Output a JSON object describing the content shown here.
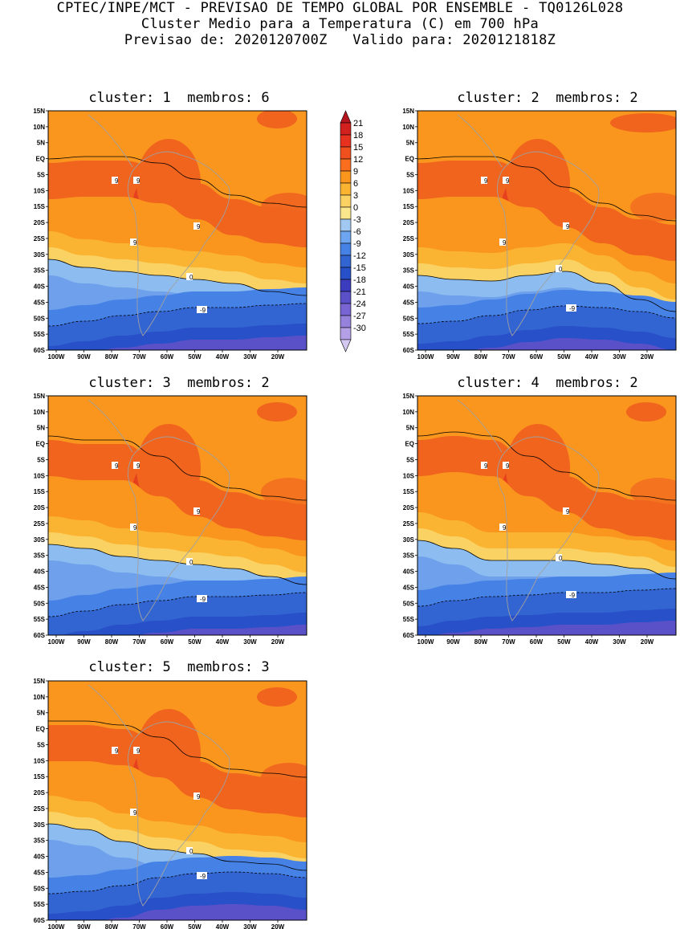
{
  "header": {
    "line1": "CPTEC/INPE/MCT - PREVISAO DE TEMPO GLOBAL POR ENSEMBLE - TQ0126L028",
    "line2": "Cluster Medio para a Temperatura (C) em 700 hPa",
    "line3": "Previsao de: 2020120700Z   Valido para: 2020121818Z"
  },
  "panels": [
    {
      "title": "cluster: 1  membros: 6"
    },
    {
      "title": "cluster: 2  membros: 2"
    },
    {
      "title": "cluster: 3  membros: 2"
    },
    {
      "title": "cluster: 4  membros: 2"
    },
    {
      "title": "cluster: 5  membros: 3"
    }
  ],
  "axes": {
    "lat_ticks": [
      "15N",
      "10N",
      "5N",
      "EQ",
      "5S",
      "10S",
      "15S",
      "20S",
      "25S",
      "30S",
      "35S",
      "40S",
      "45S",
      "50S",
      "55S",
      "60S"
    ],
    "lon_ticks": [
      "100W",
      "90W",
      "80W",
      "70W",
      "60W",
      "50W",
      "40W",
      "30W",
      "20W"
    ]
  },
  "colorbar": {
    "labels": [
      "21",
      "18",
      "15",
      "12",
      "9",
      "6",
      "3",
      "0",
      "-3",
      "-6",
      "-9",
      "-12",
      "-15",
      "-18",
      "-21",
      "-24",
      "-27",
      "-30"
    ],
    "colors": [
      "#b4141e",
      "#d2201e",
      "#e6321e",
      "#f0501e",
      "#fa6e1e",
      "#fa961e",
      "#fab432",
      "#fad264",
      "#fae68c",
      "#a0c8f0",
      "#6ea5f0",
      "#4682e6",
      "#3264d2",
      "#2850c8",
      "#3c3cbe",
      "#5a50c8",
      "#7864d2",
      "#9682dc",
      "#b4a0e6",
      "#d2c8f0"
    ]
  },
  "contour_labels": {
    "warm": "9",
    "zero": "0",
    "cold": "-9"
  }
}
